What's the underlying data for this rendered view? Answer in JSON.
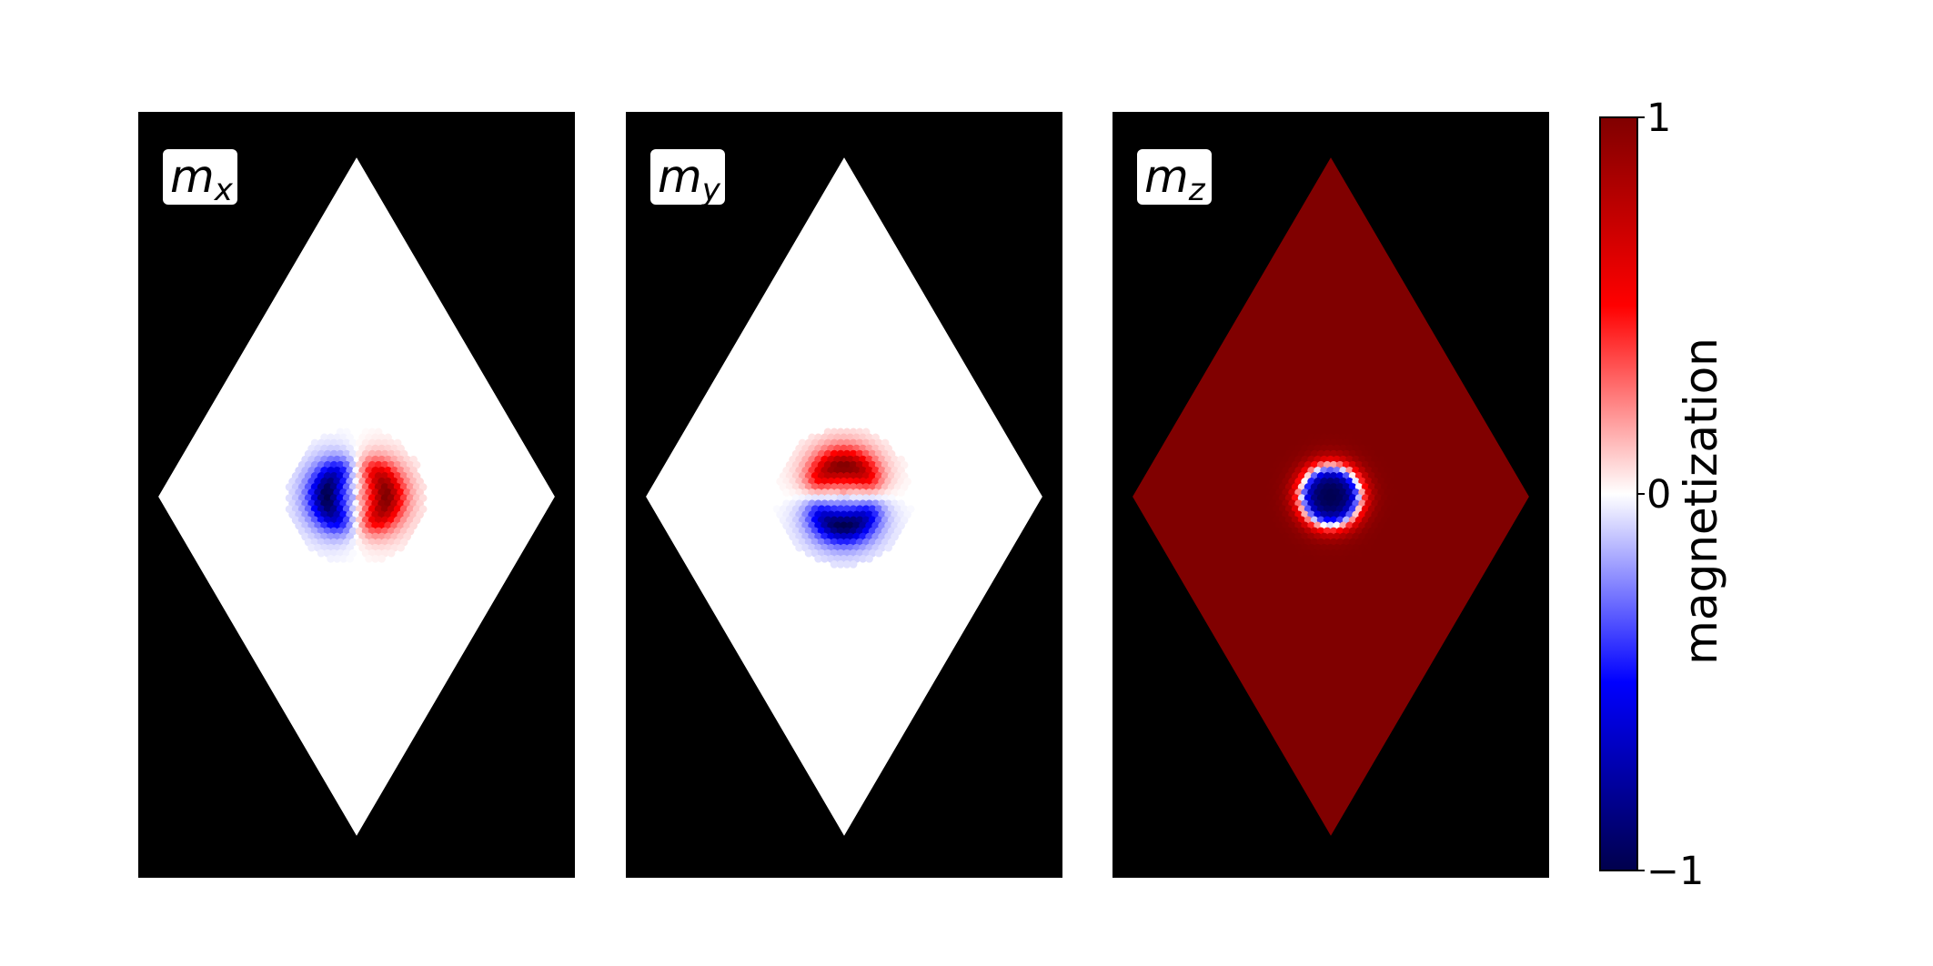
{
  "chart_data": {
    "type": "heatmap",
    "description_of_layout": "three panels side by side with shared colorbar",
    "panels": [
      {
        "component": "x",
        "label_main": "m",
        "label_sub": "x",
        "field": "mx",
        "pattern": "dipole-horizontal"
      },
      {
        "component": "y",
        "label_main": "m",
        "label_sub": "y",
        "field": "my",
        "pattern": "dipole-vertical"
      },
      {
        "component": "z",
        "label_main": "m",
        "label_sub": "z",
        "field": "mz",
        "pattern": "skyrmion-core"
      }
    ],
    "skyrmion": {
      "center": [
        0,
        0
      ],
      "radius": 0.15,
      "inplane_extent": 0.3,
      "background_mz": 1,
      "core_mz": -1
    },
    "domain_shape": "rhombus",
    "background_color": "#000000",
    "colormap": "seismic",
    "colormap_stops": [
      "#00004c",
      "#0000ff",
      "#ffffff",
      "#ff0000",
      "#800000"
    ],
    "colorbar": {
      "label": "magnetization",
      "ticks": [
        "1",
        "0",
        "−1"
      ],
      "vmin": -1,
      "vmax": 1
    }
  }
}
